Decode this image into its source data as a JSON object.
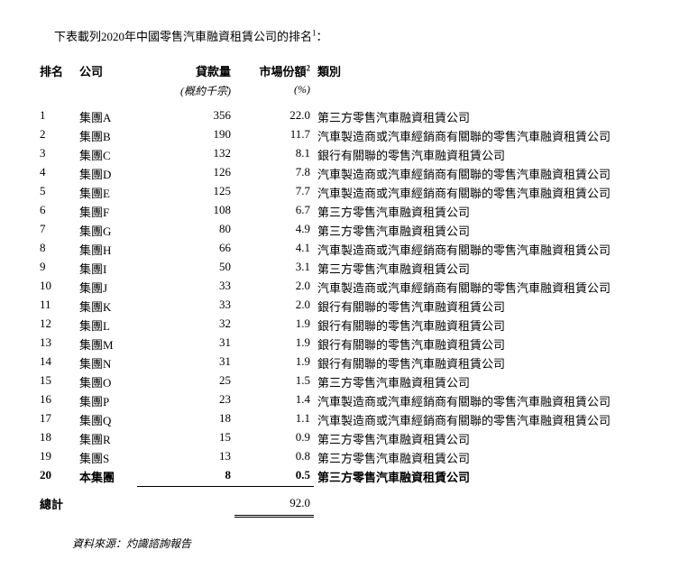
{
  "intro": "下表載列2020年中國零售汽車融資租賃公司的排名",
  "intro_sup": "1",
  "intro_colon": "：",
  "headers": {
    "rank": "排名",
    "company": "公司",
    "loan": "貸款量",
    "loan_sub": "(概約千宗)",
    "share": "市場份額",
    "share_sup": "2",
    "share_sub": "(%)",
    "category": "類別"
  },
  "rows": [
    {
      "rank": "1",
      "company": "集團A",
      "loan": "356",
      "share": "22.0",
      "category": "第三方零售汽車融資租賃公司"
    },
    {
      "rank": "2",
      "company": "集團B",
      "loan": "190",
      "share": "11.7",
      "category": "汽車製造商或汽車經銷商有關聯的零售汽車融資租賃公司"
    },
    {
      "rank": "3",
      "company": "集團C",
      "loan": "132",
      "share": "8.1",
      "category": "銀行有關聯的零售汽車融資租賃公司"
    },
    {
      "rank": "4",
      "company": "集團D",
      "loan": "126",
      "share": "7.8",
      "category": "汽車製造商或汽車經銷商有關聯的零售汽車融資租賃公司"
    },
    {
      "rank": "5",
      "company": "集團E",
      "loan": "125",
      "share": "7.7",
      "category": "汽車製造商或汽車經銷商有關聯的零售汽車融資租賃公司"
    },
    {
      "rank": "6",
      "company": "集團F",
      "loan": "108",
      "share": "6.7",
      "category": "第三方零售汽車融資租賃公司"
    },
    {
      "rank": "7",
      "company": "集團G",
      "loan": "80",
      "share": "4.9",
      "category": "第三方零售汽車融資租賃公司"
    },
    {
      "rank": "8",
      "company": "集團H",
      "loan": "66",
      "share": "4.1",
      "category": "汽車製造商或汽車經銷商有關聯的零售汽車融資租賃公司"
    },
    {
      "rank": "9",
      "company": "集團I",
      "loan": "50",
      "share": "3.1",
      "category": "第三方零售汽車融資租賃公司"
    },
    {
      "rank": "10",
      "company": "集團J",
      "loan": "33",
      "share": "2.0",
      "category": "汽車製造商或汽車經銷商有關聯的零售汽車融資租賃公司"
    },
    {
      "rank": "11",
      "company": "集團K",
      "loan": "33",
      "share": "2.0",
      "category": "銀行有關聯的零售汽車融資租賃公司"
    },
    {
      "rank": "12",
      "company": "集團L",
      "loan": "32",
      "share": "1.9",
      "category": "銀行有關聯的零售汽車融資租賃公司"
    },
    {
      "rank": "13",
      "company": "集團M",
      "loan": "31",
      "share": "1.9",
      "category": "銀行有關聯的零售汽車融資租賃公司"
    },
    {
      "rank": "14",
      "company": "集團N",
      "loan": "31",
      "share": "1.9",
      "category": "銀行有關聯的零售汽車融資租賃公司"
    },
    {
      "rank": "15",
      "company": "集團O",
      "loan": "25",
      "share": "1.5",
      "category": "第三方零售汽車融資租賃公司"
    },
    {
      "rank": "16",
      "company": "集團P",
      "loan": "23",
      "share": "1.4",
      "category": "汽車製造商或汽車經銷商有關聯的零售汽車融資租賃公司"
    },
    {
      "rank": "17",
      "company": "集團Q",
      "loan": "18",
      "share": "1.1",
      "category": "汽車製造商或汽車經銷商有關聯的零售汽車融資租賃公司"
    },
    {
      "rank": "18",
      "company": "集團R",
      "loan": "15",
      "share": "0.9",
      "category": "第三方零售汽車融資租賃公司"
    },
    {
      "rank": "19",
      "company": "集團S",
      "loan": "13",
      "share": "0.8",
      "category": "第三方零售汽車融資租賃公司"
    }
  ],
  "highlight": {
    "rank": "20",
    "company": "本集團",
    "loan": "8",
    "share": "0.5",
    "category": "第三方零售汽車融資租賃公司"
  },
  "total": {
    "label": "總計",
    "share": "92.0"
  },
  "source": "資料來源：灼識諮詢報告"
}
